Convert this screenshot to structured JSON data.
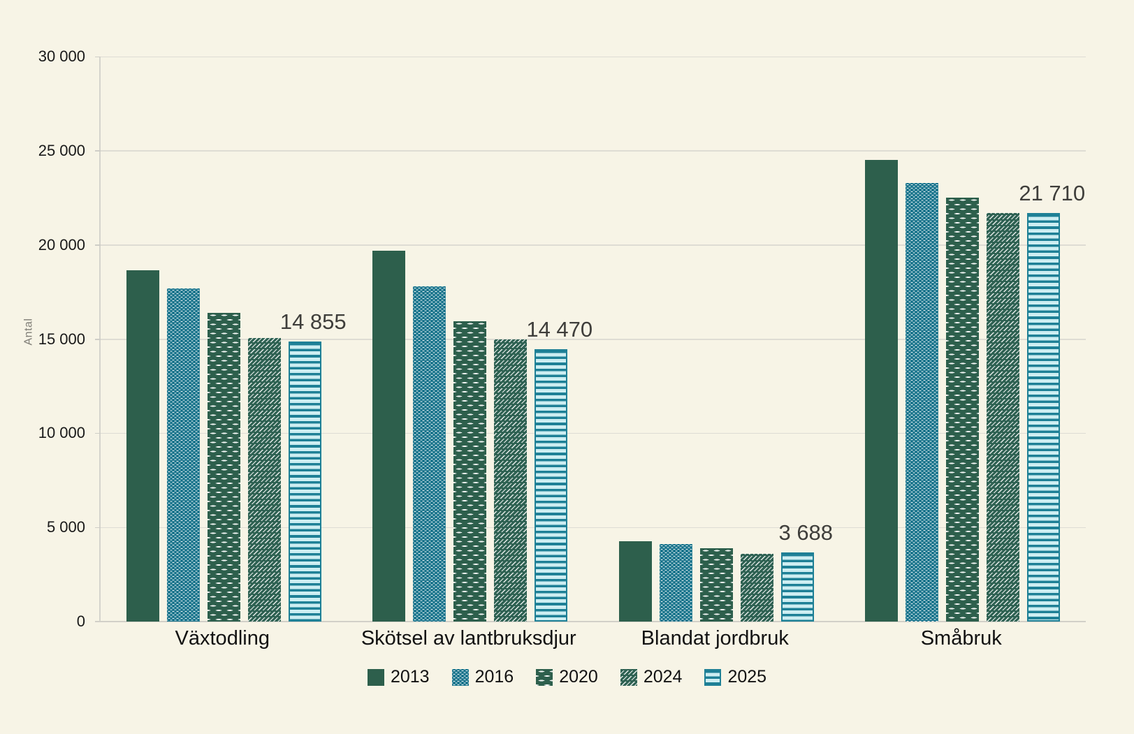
{
  "ui": {
    "background_color": "#f7f4e6",
    "grid_color": "#dedcd4",
    "axis_color": "#d5d4cd",
    "tick_label_color": "#191919",
    "data_label_color": "#3f3e3b",
    "axis_title_color": "#7f7d76",
    "series_patterns": {
      "2013": "solid-green",
      "2016": "teal-dots",
      "2020": "green-dashes",
      "2024": "green-diag",
      "2025": "teal-stripes"
    },
    "series_colors": {
      "2013": "#2d5f4c",
      "2016": "#17738b",
      "2020": "#2d5f4c",
      "2024": "#2f6253",
      "2025": "#1e8096"
    }
  },
  "chart_data": {
    "type": "bar",
    "title": "",
    "ylabel": "Antal",
    "xlabel": "",
    "ylim": [
      0,
      30000
    ],
    "yticks": [
      "0",
      "5 000",
      "10 000",
      "15 000",
      "20 000",
      "25 000",
      "30 000"
    ],
    "grid": true,
    "legend_position": "bottom",
    "categories": [
      "Växtodling",
      "Skötsel av lantbruksdjur",
      "Blandat jordbruk",
      "Småbruk"
    ],
    "series": [
      {
        "name": "2013",
        "values": [
          18650,
          19700,
          4250,
          24500
        ]
      },
      {
        "name": "2016",
        "values": [
          17700,
          17800,
          4100,
          23300
        ]
      },
      {
        "name": "2020",
        "values": [
          16400,
          15950,
          3900,
          22500
        ]
      },
      {
        "name": "2024",
        "values": [
          15050,
          15000,
          3600,
          21700
        ]
      },
      {
        "name": "2025",
        "values": [
          14855,
          14470,
          3688,
          21710
        ],
        "data_labels": [
          "14 855",
          "14 470",
          "3 688",
          "21 710"
        ]
      }
    ]
  }
}
